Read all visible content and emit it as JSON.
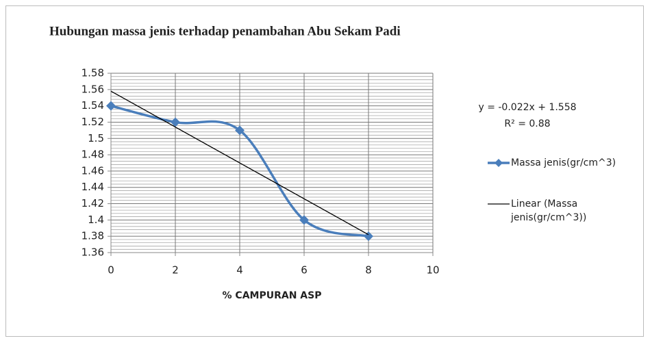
{
  "chart_data": {
    "type": "line",
    "title": "Hubungan massa jenis terhadap penambahan Abu Sekam Padi",
    "x_label": "% CAMPURAN ASP",
    "xlim": [
      0,
      10
    ],
    "xticks": [
      0,
      2,
      4,
      6,
      8,
      10
    ],
    "ylim": [
      1.36,
      1.58
    ],
    "yticks": [
      1.36,
      1.38,
      1.4,
      1.42,
      1.44,
      1.46,
      1.48,
      1.5,
      1.52,
      1.54,
      1.56,
      1.58
    ],
    "grid": true,
    "minor_grid": true,
    "smooth": true,
    "legend": "right",
    "annotations": [
      "y = -0.022x + 1.558",
      "R² = 0.88"
    ],
    "series": [
      {
        "name": "Massa jenis(gr/cm^3)",
        "color": "#4a7ebb",
        "x": [
          0,
          2,
          4,
          6,
          8
        ],
        "values": [
          1.54,
          1.52,
          1.51,
          1.4,
          1.38
        ]
      },
      {
        "name": "Linear (Massa jenis(gr/cm^3))",
        "color": "#000000",
        "x": [
          0,
          8
        ],
        "values": [
          1.558,
          1.382
        ]
      }
    ]
  }
}
